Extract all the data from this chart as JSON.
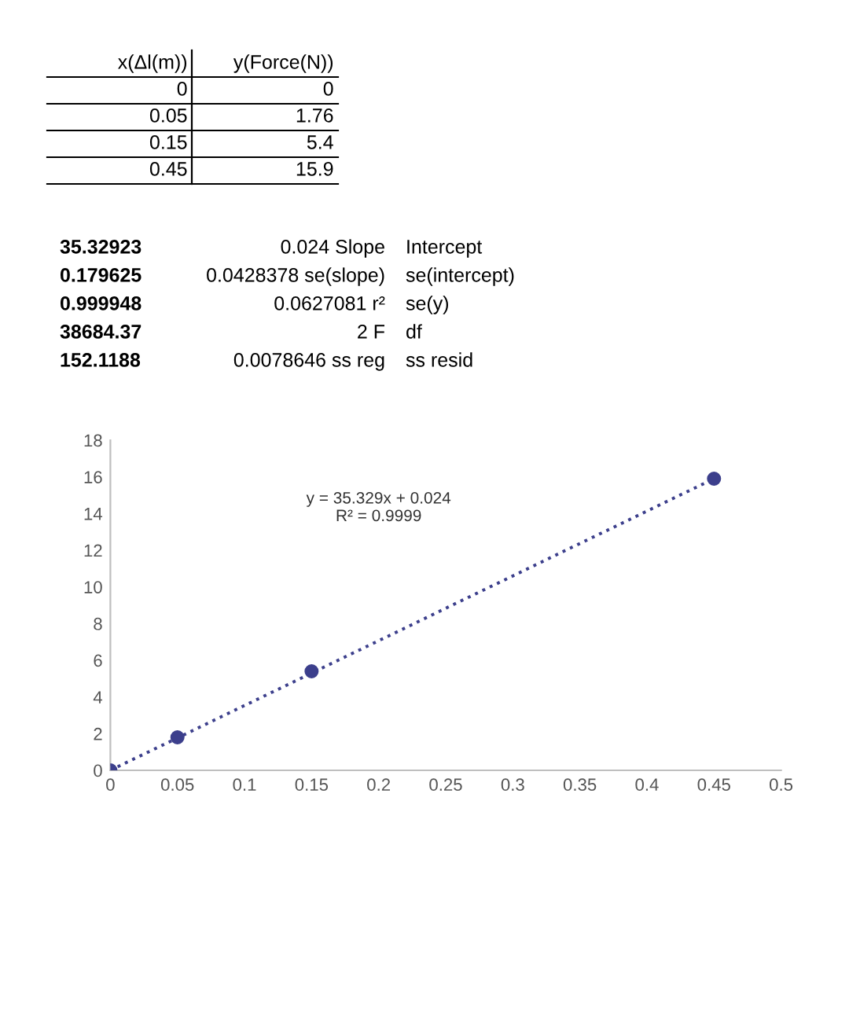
{
  "chart_data": {
    "type": "scatter",
    "xlim": [
      0,
      0.5
    ],
    "ylim": [
      0,
      18
    ],
    "xticks": [
      0,
      0.05,
      0.1,
      0.15,
      0.2,
      0.25,
      0.3,
      0.35,
      0.4,
      0.45,
      0.5
    ],
    "yticks": [
      0,
      2,
      4,
      6,
      8,
      10,
      12,
      14,
      16,
      18
    ],
    "grid": false,
    "series": [
      {
        "x": [
          0,
          0.05,
          0.15,
          0.45
        ],
        "values": [
          0,
          1.8,
          5.4,
          15.9
        ],
        "color": "#3c3f8c",
        "marker": "circle"
      },
      {
        "type": "line",
        "x": [
          0,
          0.45
        ],
        "values": [
          0,
          15.9
        ],
        "color": "#3c3f8c",
        "marker": "none",
        "line_style": "dotted"
      }
    ],
    "annotations": [
      "x(Δl(m))",
      "y(Force(N))",
      "0",
      "0",
      "0.05",
      "1.76",
      "0.15",
      "5.4",
      "0.45",
      "15.9",
      "35.32923",
      "0.024 Slope",
      "Intercept",
      "0.179625",
      "0.0428378 se(slope)",
      "se(intercept)",
      "0.999948",
      "0.0627081 r²",
      "se(y)",
      "38684.37",
      "2 F",
      "df",
      "152.1188",
      "0.0078646 ss reg",
      "ss resid",
      "y = 35.329x + 0.024",
      "R² = 0.9999"
    ]
  }
}
